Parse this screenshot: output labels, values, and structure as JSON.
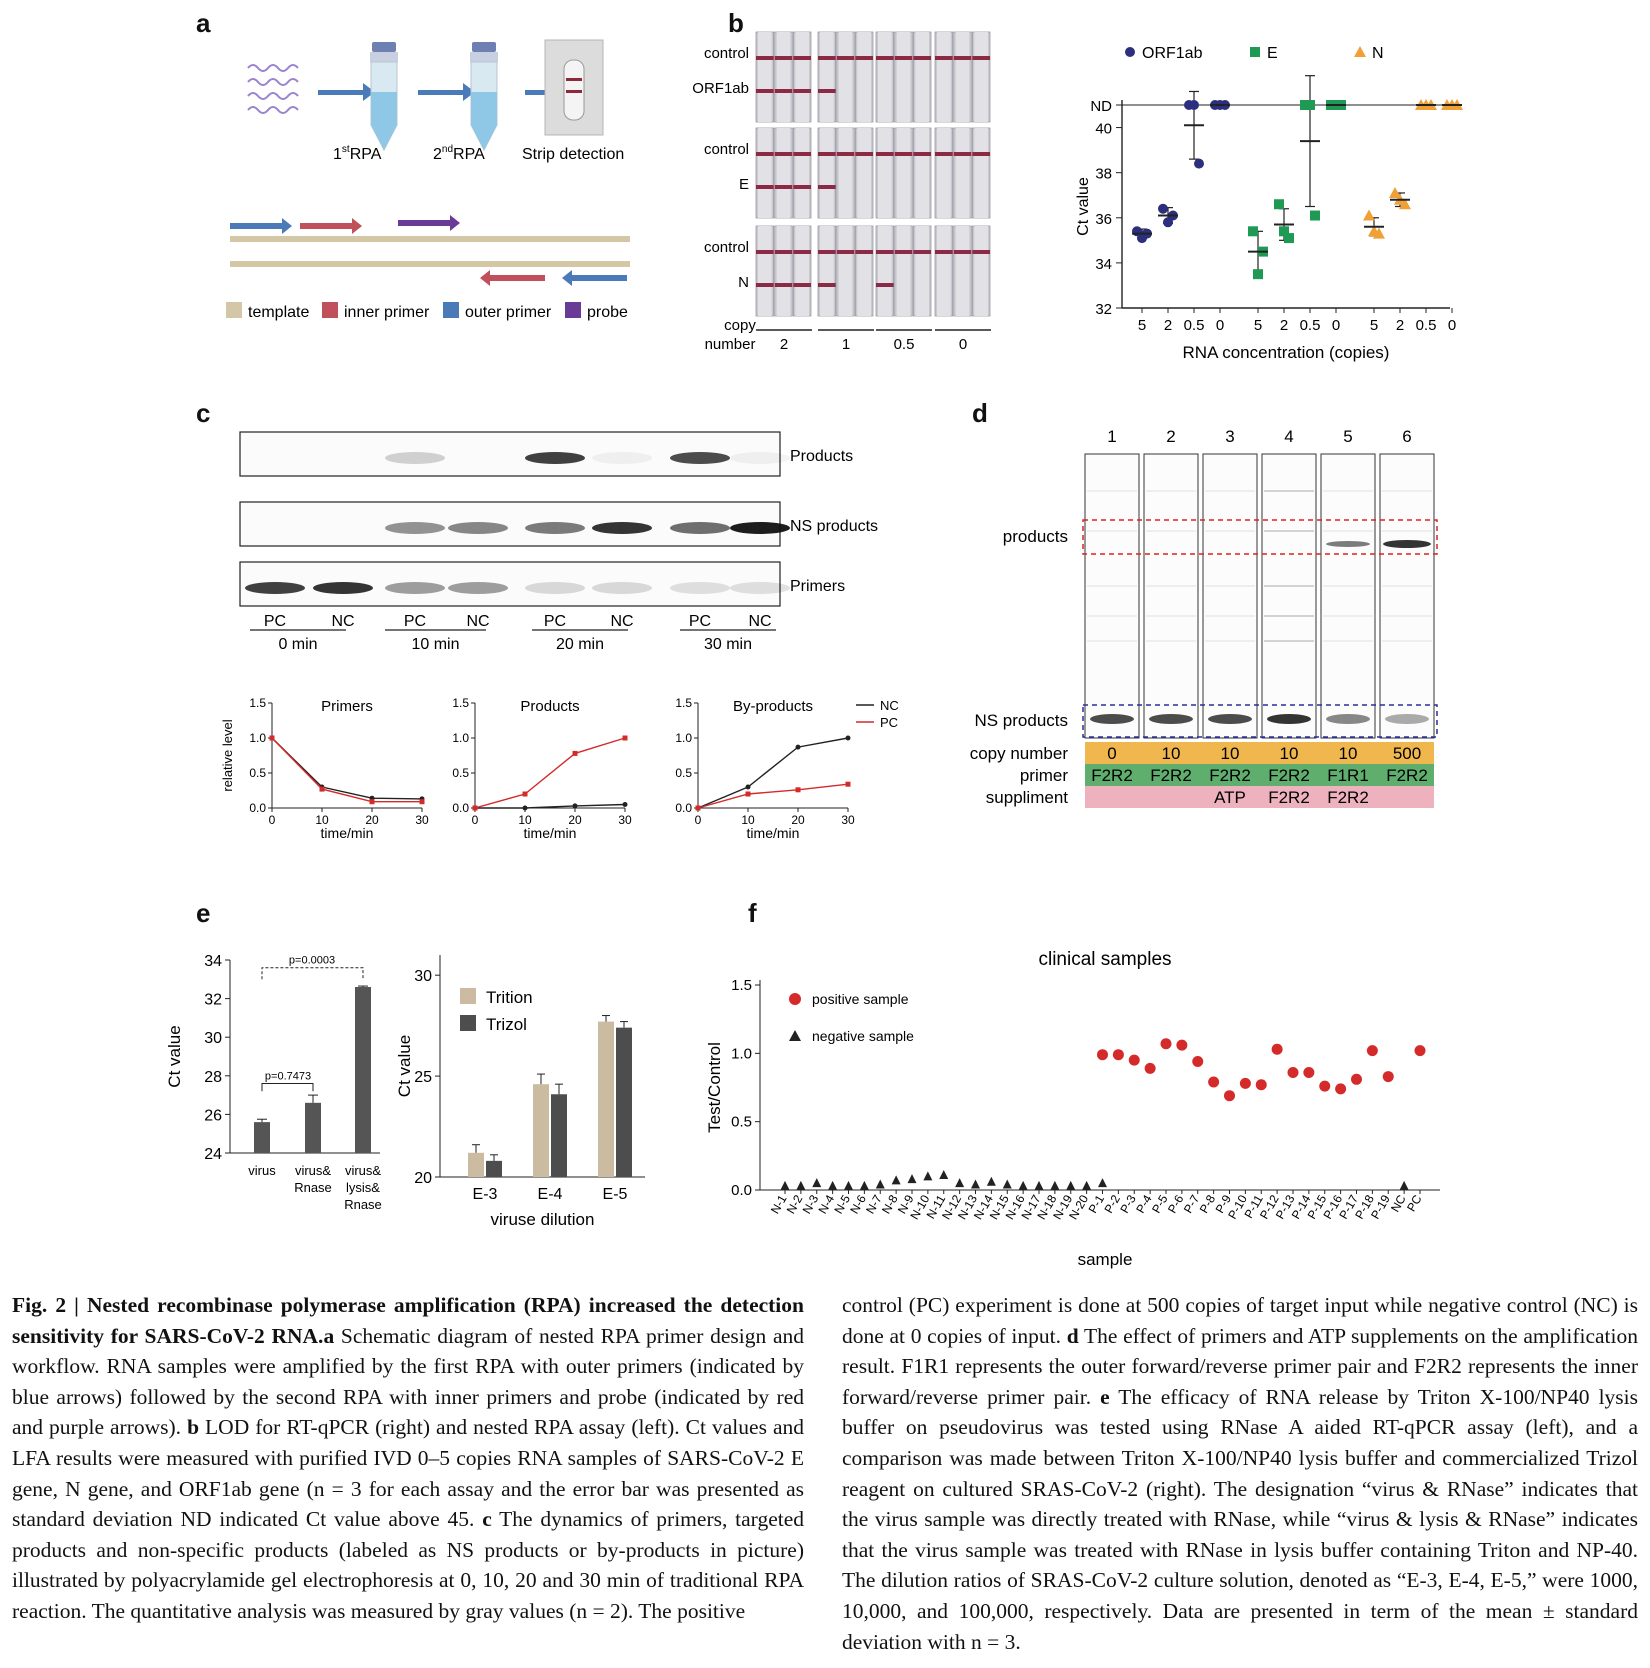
{
  "panels": {
    "a": "a",
    "b": "b",
    "c": "c",
    "d": "d",
    "e": "e",
    "f": "f"
  },
  "a": {
    "steps": [
      "1stRPA",
      "2ndRPA",
      "Strip detection"
    ],
    "step1_main": "1",
    "step1_sup": "st",
    "step1_rest": "RPA",
    "step2_main": "2",
    "step2_sup": "nd",
    "step2_rest": "RPA",
    "step3": "Strip detection",
    "legend": [
      {
        "label": "template",
        "color": "#d4c7a5"
      },
      {
        "label": "inner primer",
        "color": "#c0505a"
      },
      {
        "label": "outer primer",
        "color": "#4a7ab8"
      },
      {
        "label": "probe",
        "color": "#6a3b96"
      }
    ]
  },
  "b": {
    "strip_rows": [
      {
        "top": "control",
        "bottom": "ORF1ab"
      },
      {
        "top": "control",
        "bottom": "E"
      },
      {
        "top": "control",
        "bottom": "N"
      }
    ],
    "copy_label_1": "copy",
    "copy_label_2": "number",
    "copy_values": [
      "2",
      "1",
      "0.5",
      "0"
    ],
    "strip_test_lines": [
      [
        3,
        1,
        0,
        0
      ],
      [
        3,
        1,
        0,
        0
      ],
      [
        3,
        1,
        1,
        0
      ]
    ]
  },
  "c": {
    "gel_labels": [
      "Products",
      "NS products",
      "Primers"
    ],
    "lanes": [
      "PC",
      "NC",
      "PC",
      "NC",
      "PC",
      "NC",
      "PC",
      "NC"
    ],
    "times": [
      "0 min",
      "10 min",
      "20 min",
      "30 min"
    ]
  },
  "d": {
    "lane_numbers": [
      "1",
      "2",
      "3",
      "4",
      "5",
      "6"
    ],
    "labels": {
      "products": "products",
      "ns": "NS products"
    },
    "rows": [
      {
        "label": "copy number",
        "values": [
          "0",
          "10",
          "10",
          "10",
          "10",
          "500"
        ],
        "color": "#f0b74f"
      },
      {
        "label": "primer",
        "values": [
          "F2R2",
          "F2R2",
          "F2R2",
          "F2R2",
          "F1R1",
          "F2R2"
        ],
        "color": "#5fae6e"
      },
      {
        "label": "suppliment",
        "values": [
          "",
          "",
          "ATP",
          "F2R2",
          "F2R2",
          ""
        ],
        "color": "#eeb1be"
      }
    ]
  },
  "caption": {
    "bold_title": "Fig. 2 | Nested recombinase polymerase amplification (RPA) increased the detection sensitivity for SARS-CoV-2 RNA.",
    "left_a": "a",
    "left_text_a": " Schematic diagram of nested RPA primer design and workflow. RNA samples were amplified by the first RPA with outer primers (indicated by blue arrows) followed by the second RPA with inner primers and probe (indicated by red and purple arrows). ",
    "left_b": "b",
    "left_text_b": " LOD for RT-qPCR (right) and nested RPA assay (left). Ct values and LFA results were measured with purified IVD 0–5 copies RNA samples of SARS-CoV-2 E gene, N gene, and ORF1ab gene (n = 3 for each assay and the error bar was presented as standard deviation ND indicated Ct value above 45. ",
    "left_c": "c",
    "left_text_c": " The dynamics of primers, targeted products and non-specific products (labeled as NS products or by-products in picture) illustrated by polyacrylamide gel electrophoresis at 0, 10, 20 and 30 min of traditional RPA reaction. The quantitative analysis was measured by gray values (n = 2). The positive",
    "right_text_1": "control (PC) experiment is done at 500 copies of target input while negative control (NC) is done at 0 copies of input. ",
    "right_d": "d",
    "right_text_d": " The effect of primers and ATP supplements on the amplification result. F1R1 represents the outer forward/reverse primer pair and F2R2 represents the inner forward/reverse primer pair. ",
    "right_e": "e",
    "right_text_e": " The efficacy of RNA release by Triton X-100/NP40 lysis buffer on pseudovirus was tested using RNase A aided RT-qPCR assay (left), and a comparison was made between Triton X-100/NP40 lysis buffer and commercialized Trizol reagent on cultured SRAS-CoV-2 (right). The designation “virus & RNase” indicates that the virus sample was directly treated with RNase, while “virus & lysis & RNase” indicates that the virus sample was treated with RNase in lysis buffer containing Triton and NP-40. The dilution ratios of SRAS-CoV-2 culture solution, denoted as “E-3, E-4, E-5,” were 1000, 10,000, and 100,000, respectively. Data are presented in term of the mean ± standard deviation with n = 3."
  },
  "chart_data": [
    {
      "id": "b_right",
      "type": "scatter",
      "xlabel": "RNA concentration (copies)",
      "ylabel": "Ct value",
      "ylim": [
        32,
        41
      ],
      "yticks": [
        32,
        34,
        36,
        38,
        40
      ],
      "nd_label": "ND",
      "nd_value": 41,
      "xtick_labels": [
        "5",
        "2",
        "0.5",
        "0",
        "5",
        "2",
        "0.5",
        "0",
        "5",
        "2",
        "0.5",
        "0"
      ],
      "legend": "top",
      "series": [
        {
          "name": "ORF1ab",
          "color": "#2b2f7e",
          "marker": "circle",
          "points": [
            [
              35.4,
              35.1,
              35.3
            ],
            [
              36.4,
              35.8,
              36.1
            ],
            [
              41,
              41,
              38.4
            ],
            [
              41,
              41,
              41
            ]
          ],
          "mean": [
            35.3,
            36.1,
            40.1,
            41
          ],
          "sd": [
            0.2,
            0.35,
            1.5,
            0
          ]
        },
        {
          "name": "E",
          "color": "#1f9a55",
          "marker": "square",
          "points": [
            [
              35.4,
              33.5,
              34.5
            ],
            [
              36.6,
              35.4,
              35.1
            ],
            [
              41,
              41,
              36.1
            ],
            [
              41,
              41,
              41
            ]
          ],
          "mean": [
            34.5,
            35.7,
            39.4,
            41
          ],
          "sd": [
            0.9,
            0.7,
            2.9,
            0
          ]
        },
        {
          "name": "N",
          "color": "#f0a035",
          "marker": "triangle",
          "points": [
            [
              36.1,
              35.4,
              35.3
            ],
            [
              37.1,
              36.8,
              36.6
            ],
            [
              41,
              41,
              41
            ],
            [
              41,
              41,
              41
            ]
          ],
          "mean": [
            35.6,
            36.8,
            41,
            41
          ],
          "sd": [
            0.4,
            0.3,
            0,
            0
          ]
        }
      ]
    },
    {
      "id": "c_primers",
      "type": "line",
      "title": "Primers",
      "ylabel": "relative level",
      "xlabel": "time/min",
      "x": [
        0,
        10,
        20,
        30
      ],
      "ylim": [
        0,
        1.5
      ],
      "yticks": [
        0.0,
        0.5,
        1.0,
        1.5
      ],
      "series": [
        {
          "name": "NC",
          "color": "#222222",
          "values": [
            1.0,
            0.3,
            0.14,
            0.13
          ]
        },
        {
          "name": "PC",
          "color": "#d42a2a",
          "values": [
            1.0,
            0.27,
            0.09,
            0.09
          ]
        }
      ]
    },
    {
      "id": "c_products",
      "type": "line",
      "title": "Products",
      "xlabel": "time/min",
      "x": [
        0,
        10,
        20,
        30
      ],
      "ylim": [
        0,
        1.5
      ],
      "yticks": [
        0.0,
        0.5,
        1.0,
        1.5
      ],
      "series": [
        {
          "name": "NC",
          "color": "#222222",
          "values": [
            0.0,
            0.0,
            0.03,
            0.05
          ]
        },
        {
          "name": "PC",
          "color": "#d42a2a",
          "values": [
            0.0,
            0.2,
            0.78,
            1.0
          ]
        }
      ]
    },
    {
      "id": "c_byproducts",
      "type": "line",
      "title": "By-products",
      "xlabel": "time/min",
      "x": [
        0,
        10,
        20,
        30
      ],
      "ylim": [
        0,
        1.5
      ],
      "yticks": [
        0.0,
        0.5,
        1.0,
        1.5
      ],
      "legend": "top-right",
      "series": [
        {
          "name": "NC",
          "color": "#222222",
          "values": [
            0.0,
            0.3,
            0.87,
            1.0
          ]
        },
        {
          "name": "PC",
          "color": "#d42a2a",
          "values": [
            0.0,
            0.2,
            0.26,
            0.34
          ]
        }
      ]
    },
    {
      "id": "e_left",
      "type": "bar",
      "ylabel": "Ct value",
      "categories": [
        "virus",
        "virus& Rnase",
        "virus& lysis& Rnase"
      ],
      "values": [
        25.6,
        26.6,
        32.6
      ],
      "errors": [
        0.15,
        0.4,
        0.05
      ],
      "ylim": [
        24,
        34
      ],
      "yticks": [
        24,
        26,
        28,
        30,
        32,
        34
      ],
      "annotations": [
        "p=0.7473",
        "p=0.0003"
      ],
      "color": "#555555"
    },
    {
      "id": "e_right",
      "type": "bar",
      "ylabel": "Ct value",
      "xlabel": "viruse dilution",
      "categories": [
        "E-3",
        "E-4",
        "E-5"
      ],
      "ylim": [
        20,
        31
      ],
      "yticks": [
        20,
        25,
        30
      ],
      "legend": "top-left",
      "series": [
        {
          "name": "Trition",
          "color": "#cbbba0",
          "values": [
            21.2,
            24.6,
            27.7
          ],
          "errors": [
            0.4,
            0.5,
            0.3
          ]
        },
        {
          "name": "Trizol",
          "color": "#4d4d4d",
          "values": [
            20.8,
            24.1,
            27.4
          ],
          "errors": [
            0.3,
            0.5,
            0.3
          ]
        }
      ]
    },
    {
      "id": "f",
      "type": "scatter",
      "title": "clinical samples",
      "xlabel": "sample",
      "ylabel": "Test/Control",
      "ylim": [
        0,
        1.5
      ],
      "yticks": [
        0.0,
        0.5,
        1.0,
        1.5
      ],
      "legend": "top-left",
      "categories": [
        "N-1",
        "N-2",
        "N-3",
        "N-4",
        "N-5",
        "N-6",
        "N-7",
        "N-8",
        "N-9",
        "N-10",
        "N-11",
        "N-12",
        "N-13",
        "N-14",
        "N-15",
        "N-16",
        "N-17",
        "N-18",
        "N-19",
        "N-20",
        "P-1",
        "P-2",
        "P-3",
        "P-4",
        "P-5",
        "P-6",
        "P-7",
        "P-8",
        "P-9",
        "P-10",
        "P-11",
        "P-12",
        "P-13",
        "P-14",
        "P-15",
        "P-16",
        "P-17",
        "P-18",
        "P-19",
        "NC",
        "PC"
      ],
      "series": [
        {
          "name": "positive sample",
          "color": "#d42a2a",
          "marker": "circle",
          "values": [
            null,
            null,
            null,
            null,
            null,
            null,
            null,
            null,
            null,
            null,
            null,
            null,
            null,
            null,
            null,
            null,
            null,
            null,
            null,
            null,
            0.99,
            0.99,
            0.95,
            0.89,
            1.07,
            1.06,
            0.94,
            0.79,
            0.69,
            0.78,
            0.77,
            1.03,
            0.86,
            0.86,
            0.76,
            0.74,
            0.81,
            1.02,
            0.83,
            null,
            1.02
          ]
        },
        {
          "name": "negative sample",
          "color": "#222222",
          "marker": "triangle",
          "values": [
            0.03,
            0.03,
            0.05,
            0.03,
            0.03,
            0.03,
            0.04,
            0.07,
            0.08,
            0.1,
            0.11,
            0.05,
            0.04,
            0.06,
            0.04,
            0.03,
            0.03,
            0.03,
            0.03,
            0.03,
            0.05,
            null,
            null,
            null,
            null,
            null,
            null,
            null,
            null,
            null,
            null,
            null,
            null,
            null,
            null,
            null,
            null,
            null,
            null,
            0.03,
            null
          ]
        }
      ]
    }
  ]
}
